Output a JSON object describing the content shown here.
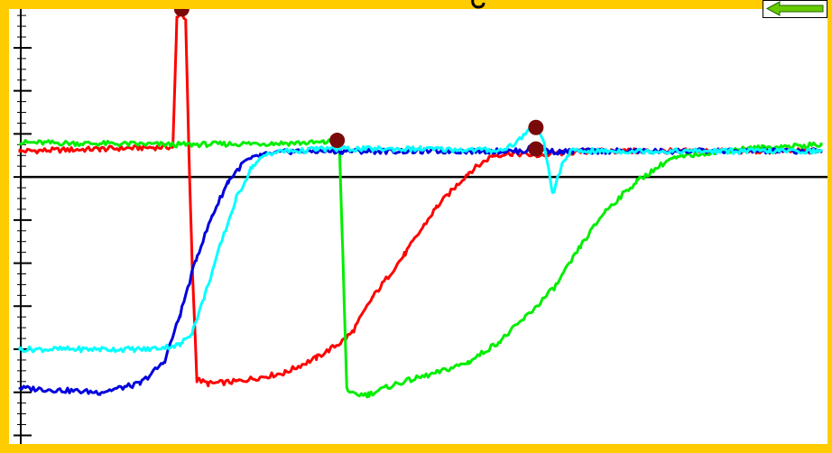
{
  "ui": {
    "background_color": "#FFCC00",
    "plot_background": "#FFFFFF",
    "back_button": {
      "icon": "left-arrow-icon",
      "color": "#66CC00"
    }
  },
  "chart_data": {
    "type": "line",
    "title": "",
    "xlabel": "",
    "ylabel": "",
    "xlim": [
      0,
      100
    ],
    "ylim": [
      -6.2,
      3.9
    ],
    "y_ticks": [
      -6,
      -5,
      -4,
      -3,
      -2,
      -1,
      0,
      1,
      2,
      3
    ],
    "minor_ticks_per_unit": 4,
    "zero_line": true,
    "grid": false,
    "legend": "none",
    "series": [
      {
        "color": "#FF0000",
        "x": [
          0,
          10,
          19.1,
          19.6,
          20.1,
          20.7,
          21.1,
          21.5,
          22.1,
          23.5,
          27,
          33,
          37,
          40,
          41.5,
          44,
          48,
          52,
          56,
          59,
          61.5,
          64.5,
          67,
          72,
          77,
          85,
          92,
          100
        ],
        "y": [
          0.6,
          0.65,
          0.7,
          3.7,
          3.9,
          3.6,
          0.5,
          -2.0,
          -4.7,
          -4.8,
          -4.75,
          -4.55,
          -4.2,
          -3.85,
          -3.6,
          -2.8,
          -1.8,
          -0.7,
          0.1,
          0.5,
          0.55,
          0.5,
          0.55,
          0.6,
          0.6,
          0.6,
          0.6,
          0.6
        ]
      },
      {
        "color": "#00EE00",
        "x": [
          0,
          20,
          38,
          39.4,
          39.9,
          40.3,
          40.8,
          41.5,
          43.5,
          47,
          52,
          56,
          60,
          64,
          67,
          70,
          73,
          77,
          81,
          85,
          90,
          95,
          100
        ],
        "y": [
          0.8,
          0.75,
          0.8,
          0.85,
          0.6,
          -1.8,
          -4.9,
          -5.05,
          -5.05,
          -4.8,
          -4.55,
          -4.3,
          -3.8,
          -3.1,
          -2.5,
          -1.6,
          -0.8,
          -0.1,
          0.4,
          0.55,
          0.65,
          0.7,
          0.75
        ]
      },
      {
        "color": "#0000DD",
        "x": [
          0,
          10,
          15,
          18,
          20,
          22,
          24,
          26,
          28,
          30,
          32,
          34,
          36,
          40,
          50,
          60,
          63,
          64.5,
          66,
          67.5,
          69,
          71,
          80,
          90,
          100
        ],
        "y": [
          -4.9,
          -5.0,
          -4.8,
          -4.3,
          -3.2,
          -1.9,
          -0.9,
          -0.1,
          0.35,
          0.5,
          0.55,
          0.6,
          0.6,
          0.6,
          0.6,
          0.6,
          0.6,
          0.75,
          0.6,
          0.58,
          0.6,
          0.6,
          0.6,
          0.6,
          0.6
        ]
      },
      {
        "color": "#00FFFF",
        "x": [
          0,
          10,
          16,
          20,
          21.5,
          23,
          25,
          27,
          29,
          31,
          33,
          35,
          37,
          40,
          50,
          60,
          62,
          63.5,
          64.5,
          65.5,
          66.5,
          67.7,
          68.7,
          70,
          80,
          90,
          100
        ],
        "y": [
          -4.0,
          -4.0,
          -4.0,
          -3.9,
          -3.6,
          -2.8,
          -1.6,
          -0.5,
          0.25,
          0.55,
          0.6,
          0.6,
          0.65,
          0.65,
          0.65,
          0.62,
          0.8,
          1.1,
          1.2,
          0.7,
          -0.4,
          0.3,
          0.6,
          0.6,
          0.6,
          0.6,
          0.6
        ]
      }
    ],
    "markers": [
      {
        "color": "#7A0A0A",
        "x": 20.2,
        "y": 3.9
      },
      {
        "color": "#7A0A0A",
        "x": 39.6,
        "y": 0.85
      },
      {
        "color": "#7A0A0A",
        "x": 64.4,
        "y": 1.15
      },
      {
        "color": "#7A0A0A",
        "x": 64.4,
        "y": 0.65
      }
    ]
  }
}
